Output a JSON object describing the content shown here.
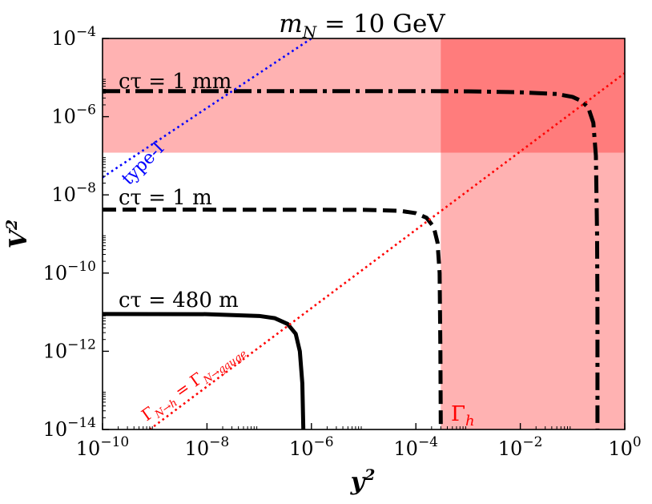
{
  "chart_data": {
    "type": "line",
    "title": "m_N = 10 GeV",
    "title_parts": {
      "symbol": "m",
      "subscript": "N",
      "rest": " = 10 GeV"
    },
    "xlabel": "y",
    "ylabel": "V",
    "label_power": "2",
    "x_scale": "log",
    "y_scale": "log",
    "xlim": [
      1e-10,
      1
    ],
    "ylim": [
      1e-14,
      0.0001
    ],
    "x_ticks": [
      {
        "base": "10",
        "exp": "−10",
        "value": 1e-10
      },
      {
        "base": "10",
        "exp": "−8",
        "value": 1e-08
      },
      {
        "base": "10",
        "exp": "−6",
        "value": 1e-06
      },
      {
        "base": "10",
        "exp": "−4",
        "value": 0.0001
      },
      {
        "base": "10",
        "exp": "−2",
        "value": 0.01
      },
      {
        "base": "10",
        "exp": "0",
        "value": 1
      }
    ],
    "y_ticks": [
      {
        "base": "10",
        "exp": "−14",
        "value": 1e-14
      },
      {
        "base": "10",
        "exp": "−12",
        "value": 1e-12
      },
      {
        "base": "10",
        "exp": "−10",
        "value": 1e-10
      },
      {
        "base": "10",
        "exp": "−8",
        "value": 1e-08
      },
      {
        "base": "10",
        "exp": "−6",
        "value": 1e-06
      },
      {
        "base": "10",
        "exp": "−4",
        "value": 0.0001
      }
    ],
    "grid": false,
    "shaded_regions": [
      {
        "id": "v2-band",
        "x_range": [
          1e-10,
          1
        ],
        "y_range": [
          1.2e-07,
          0.0001
        ],
        "color": "#ff0000",
        "opacity": 0.3
      },
      {
        "id": "gamma-h-band",
        "x_range": [
          0.0003,
          1
        ],
        "y_range": [
          1e-14,
          0.0001
        ],
        "color": "#ff0000",
        "opacity": 0.3,
        "label": "Γ",
        "label_subscript": "h"
      }
    ],
    "series": [
      {
        "id": "ctau-1mm",
        "label": "cτ = 1 mm",
        "style": "dashdot",
        "color": "#000000",
        "points": [
          [
            1e-10,
            4.5e-06
          ],
          [
            0.0001,
            4.5e-06
          ],
          [
            0.001,
            4.45e-06
          ],
          [
            0.01,
            4.2e-06
          ],
          [
            0.05,
            3.8e-06
          ],
          [
            0.1,
            3.2e-06
          ],
          [
            0.15,
            2.5e-06
          ],
          [
            0.2,
            1.7e-06
          ],
          [
            0.25,
            7e-07
          ],
          [
            0.28,
            1e-07
          ],
          [
            0.295,
            1e-09
          ],
          [
            0.3,
            1e-11
          ],
          [
            0.3,
            1e-14
          ]
        ]
      },
      {
        "id": "ctau-1m",
        "label": "cτ = 1 m",
        "style": "dashed",
        "color": "#000000",
        "points": [
          [
            1e-10,
            4.2e-09
          ],
          [
            1e-05,
            4.15e-09
          ],
          [
            5e-05,
            3.9e-09
          ],
          [
            0.0001,
            3.4e-09
          ],
          [
            0.00016,
            2.6e-09
          ],
          [
            0.00022,
            1.5e-09
          ],
          [
            0.00026,
            6e-10
          ],
          [
            0.000285,
            1e-10
          ],
          [
            0.000295,
            1e-12
          ],
          [
            0.0003,
            1e-14
          ]
        ]
      },
      {
        "id": "ctau-480m",
        "label": "cτ = 480 m",
        "style": "solid",
        "color": "#000000",
        "points": [
          [
            1e-10,
            9e-12
          ],
          [
            1e-08,
            8.9e-12
          ],
          [
            1e-07,
            8e-12
          ],
          [
            2e-07,
            7e-12
          ],
          [
            3.5e-07,
            5e-12
          ],
          [
            5e-07,
            2.8e-12
          ],
          [
            6e-07,
            1e-12
          ],
          [
            6.7e-07,
            1.5e-13
          ],
          [
            7e-07,
            1e-14
          ]
        ]
      },
      {
        "id": "type-1",
        "label": "type-I",
        "style": "dotted",
        "color": "#0000ff",
        "points": [
          [
            1e-10,
            2.8e-08
          ],
          [
            1e-06,
            0.0001
          ]
        ]
      },
      {
        "id": "gamma-equality",
        "label": "Γ_{N→h} = Γ_{N→gauge}",
        "label_parts": {
          "lhs": "Γ",
          "lhs_sub": "N→h",
          "eq": " = ",
          "rhs": "Γ",
          "rhs_sub": "N→gauge"
        },
        "style": "dotted",
        "color": "#ff0000",
        "points": [
          [
            8e-10,
            1e-14
          ],
          [
            1,
            1.3e-05
          ]
        ]
      }
    ]
  }
}
